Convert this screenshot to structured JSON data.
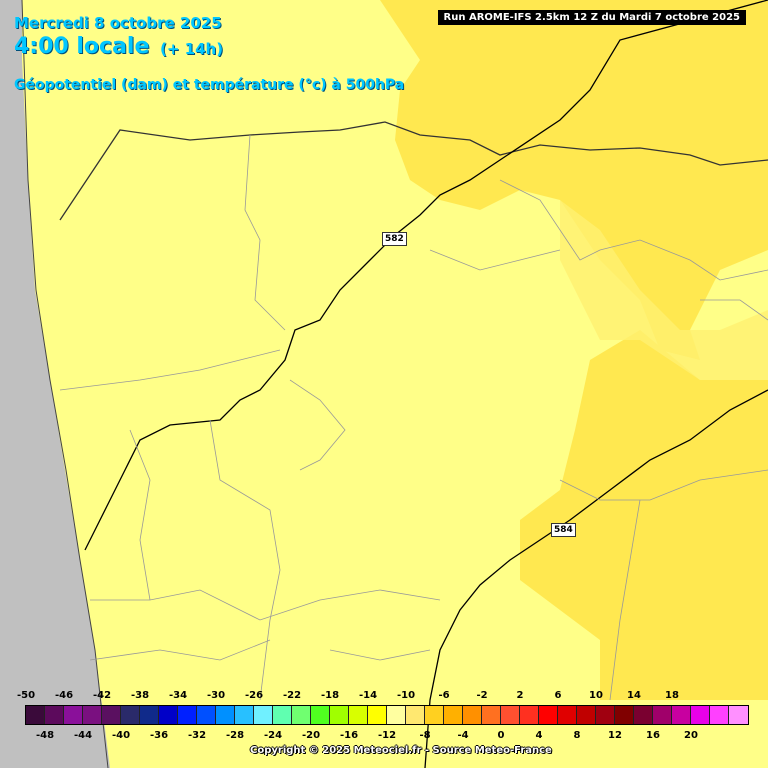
{
  "header": {
    "date": "Mercredi 8 octobre 2025",
    "time": "4:00 locale",
    "lead": "(+ 14h)",
    "parameter": "Géopotentiel (dam) et température (°c) à 500hPa"
  },
  "run_label": "Run AROME-IFS 2.5km 12 Z du Mardi 7 octobre 2025",
  "contour_labels": [
    "582",
    "584"
  ],
  "legend": {
    "top_ticks": [
      "-50",
      "-46",
      "-42",
      "-38",
      "-34",
      "-30",
      "-26",
      "-22",
      "-18",
      "-14",
      "-10",
      "-6",
      "-2",
      "2",
      "6",
      "10",
      "14",
      "18"
    ],
    "bottom_ticks": [
      "-48",
      "-44",
      "-40",
      "-36",
      "-32",
      "-28",
      "-24",
      "-20",
      "-16",
      "-12",
      "-8",
      "-4",
      "0",
      "4",
      "8",
      "12",
      "16",
      "20"
    ],
    "colors": [
      "#3a0a3a",
      "#5c0a5c",
      "#8a109a",
      "#7a1080",
      "#5a1060",
      "#2a2a6a",
      "#102a8a",
      "#0000c8",
      "#0020ff",
      "#0050ff",
      "#0090ff",
      "#28c0ff",
      "#70f0ff",
      "#60ffb0",
      "#70ff70",
      "#50ff20",
      "#a0ff00",
      "#d8ff00",
      "#ffff00",
      "#ffffa0",
      "#ffe870",
      "#ffd020",
      "#ffb000",
      "#ff9000",
      "#ff7020",
      "#ff5030",
      "#ff3020",
      "#ff0000",
      "#e00000",
      "#c00000",
      "#a00010",
      "#800000",
      "#7a0030",
      "#a0006a",
      "#c800a0",
      "#e800e8",
      "#ff40ff",
      "#ff90ff"
    ]
  },
  "colors": {
    "land": "#ffff88",
    "warm_zone": "#ffe850",
    "transition": "#fff070",
    "sea": "#c0c0c0"
  },
  "copyright": "Copyright © 2025 Meteociel.fr - Source Meteo-France"
}
